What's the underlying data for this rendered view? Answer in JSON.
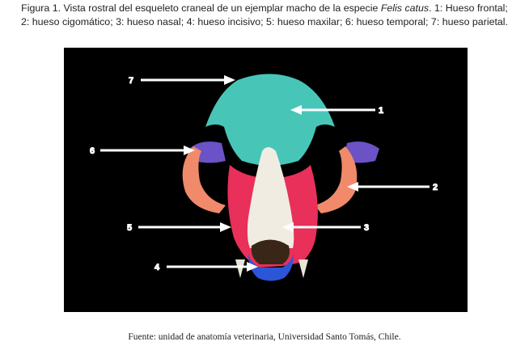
{
  "caption": {
    "line1_prefix": "Figura 1. Vista rostral del esqueleto craneal de un ejemplar macho de la especie ",
    "line1_species": "Felis catus",
    "line1_suffix": ". 1: Hueso frontal;",
    "line2": "2: hueso cigomático; 3: hueso nasal; 4: hueso incisivo; 5: hueso maxilar; 6: hueso temporal; 7: hueso parietal."
  },
  "figure": {
    "labels": [
      "7",
      "1",
      "6",
      "2",
      "5",
      "3",
      "4"
    ],
    "colors": {
      "background": "#000000",
      "frontal": "#47c6b8",
      "zygomatic": "#f08a6a",
      "nasal": "#f1ece2",
      "incisive": "#2b56d8",
      "maxilla": "#e8305a",
      "temporal": "#6b52c6",
      "parietal": "#47c6b8",
      "arrow": "#ffffff"
    }
  },
  "source": "Fuente: unidad de anatomía veterinaria, Universidad Santo Tomás, Chile."
}
